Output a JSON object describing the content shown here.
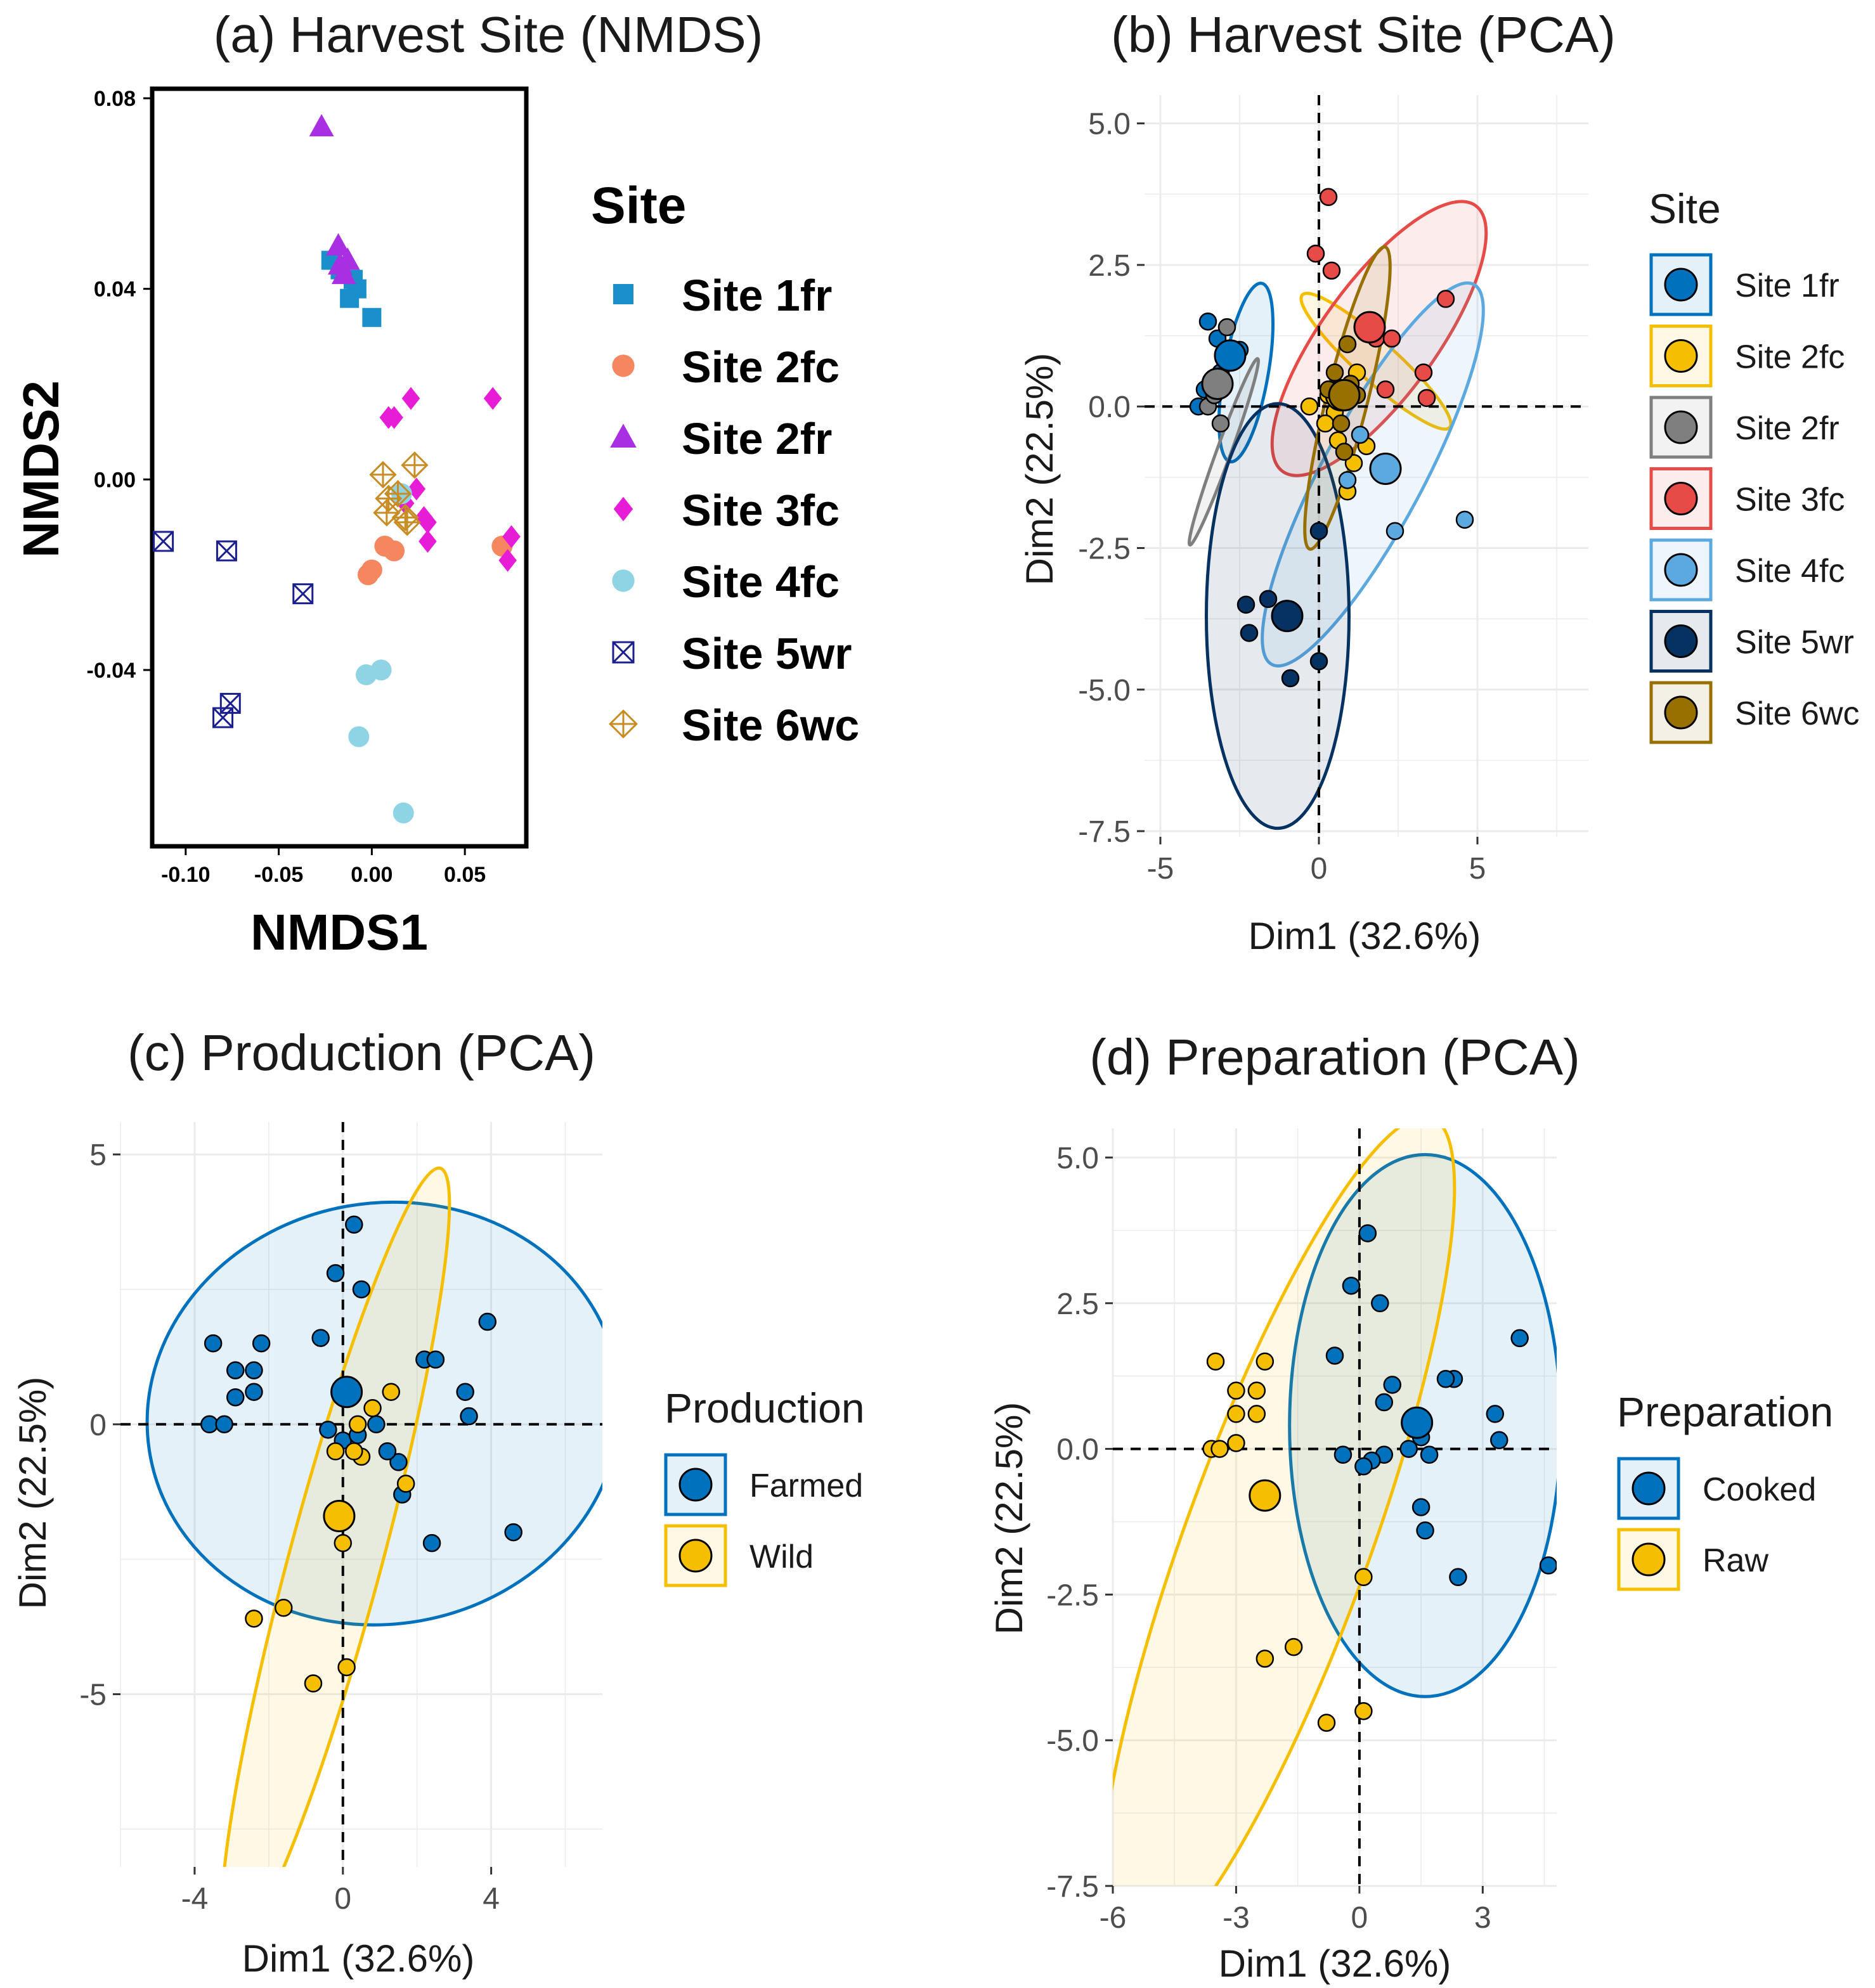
{
  "colors": {
    "site1fr": "#1a8fc9",
    "site2fc": "#f4875f",
    "site2fr": "#a82fe2",
    "site3fc": "#e61cd6",
    "site4fc": "#8fd4e4",
    "site5wr": "#1c1f8f",
    "site6wc": "#c78d24",
    "pca_1fr": "#0072bd",
    "pca_2fc": "#f5bf00",
    "pca_2fr": "#7f7f7f",
    "pca_3fc": "#e64b47",
    "pca_4fc": "#5ca9e0",
    "pca_5wr": "#063261",
    "pca_6wc": "#987000",
    "farmed": "#0072bd",
    "wild": "#f5bf00"
  },
  "chart_data": [
    {
      "type": "scatter",
      "panel": "a",
      "title": "(a) Harvest Site (NMDS)",
      "xlabel": "NMDS1",
      "ylabel": "NMDS2",
      "xlim": [
        -0.118,
        0.083
      ],
      "ylim": [
        -0.077,
        0.082
      ],
      "xticks": [
        -0.1,
        -0.05,
        0.0,
        0.05
      ],
      "xtick_labels": [
        "-0.10",
        "-0.05",
        "0.00",
        "0.05"
      ],
      "yticks": [
        -0.04,
        0.0,
        0.04,
        0.08
      ],
      "ytick_labels": [
        "-0.04",
        "0.00",
        "0.04",
        "0.08"
      ],
      "legend_title": "Site",
      "series": [
        {
          "name": "Site 1fr",
          "marker": "square",
          "color": "site1fr",
          "points": [
            [
              -0.022,
              0.046
            ],
            [
              -0.017,
              0.044
            ],
            [
              -0.01,
              0.042
            ],
            [
              -0.008,
              0.04
            ],
            [
              -0.012,
              0.038
            ],
            [
              0.0,
              0.034
            ]
          ]
        },
        {
          "name": "Site 2fc",
          "marker": "circle",
          "color": "site2fc",
          "points": [
            [
              -0.002,
              -0.02
            ],
            [
              0.0,
              -0.019
            ],
            [
              0.007,
              -0.014
            ],
            [
              0.012,
              -0.015
            ],
            [
              0.07,
              -0.014
            ]
          ]
        },
        {
          "name": "Site 2fr",
          "marker": "triangle",
          "color": "site2fr",
          "points": [
            [
              -0.027,
              0.074
            ],
            [
              -0.018,
              0.049
            ],
            [
              -0.017,
              0.045
            ],
            [
              -0.015,
              0.043
            ],
            [
              -0.013,
              0.046
            ]
          ]
        },
        {
          "name": "Site 3fc",
          "marker": "diamond",
          "color": "site3fc",
          "points": [
            [
              0.009,
              0.013
            ],
            [
              0.012,
              0.013
            ],
            [
              0.021,
              0.017
            ],
            [
              0.065,
              0.017
            ],
            [
              0.018,
              -0.005
            ],
            [
              0.024,
              -0.002
            ],
            [
              0.028,
              -0.008
            ],
            [
              0.03,
              -0.009
            ],
            [
              0.03,
              -0.013
            ],
            [
              0.075,
              -0.012
            ],
            [
              0.073,
              -0.017
            ]
          ]
        },
        {
          "name": "Site 4fc",
          "marker": "circle",
          "color": "site4fc",
          "points": [
            [
              0.016,
              -0.003
            ],
            [
              -0.003,
              -0.041
            ],
            [
              0.005,
              -0.04
            ],
            [
              -0.007,
              -0.054
            ],
            [
              0.017,
              -0.07
            ]
          ]
        },
        {
          "name": "Site 5wr",
          "marker": "boxx",
          "color": "site5wr",
          "points": [
            [
              -0.112,
              -0.013
            ],
            [
              -0.078,
              -0.015
            ],
            [
              -0.037,
              -0.024
            ],
            [
              -0.076,
              -0.047
            ],
            [
              -0.08,
              -0.05
            ]
          ]
        },
        {
          "name": "Site 6wc",
          "marker": "diamondplus",
          "color": "site6wc",
          "points": [
            [
              0.006,
              0.001
            ],
            [
              0.023,
              0.003
            ],
            [
              0.009,
              -0.004
            ],
            [
              0.014,
              -0.003
            ],
            [
              0.008,
              -0.007
            ],
            [
              0.018,
              -0.008
            ],
            [
              0.019,
              -0.009
            ]
          ]
        }
      ]
    },
    {
      "type": "scatter",
      "panel": "b",
      "title": "(b) Harvest Site (PCA)",
      "xlabel": "Dim1 (32.6%)",
      "ylabel": "Dim2 (22.5%)",
      "xlim": [
        -5.5,
        8.5
      ],
      "ylim": [
        -7.6,
        5.5
      ],
      "xticks": [
        -5,
        0,
        5
      ],
      "xtick_labels": [
        "-5",
        "0",
        "5"
      ],
      "yticks": [
        5.0,
        2.5,
        0.0,
        -2.5,
        -5.0,
        -7.5
      ],
      "ytick_labels": [
        "5.0",
        "2.5",
        "0.0",
        "-2.5",
        "-5.0",
        "-7.5"
      ],
      "legend_title": "Site",
      "series": [
        {
          "name": "Site 1fr",
          "color": "pca_1fr",
          "centroid": [
            -2.8,
            0.9
          ],
          "ellipse": [
            -2.3,
            0.6,
            1.4,
            3.2,
            10
          ],
          "points": [
            [
              -3.5,
              1.5
            ],
            [
              -3.2,
              1.2
            ],
            [
              -3.6,
              0.3
            ],
            [
              -3.8,
              0.0
            ],
            [
              -2.5,
              1.0
            ],
            [
              -3.1,
              0.6
            ]
          ]
        },
        {
          "name": "Site 2fc",
          "color": "pca_2fc",
          "centroid": [
            0.7,
            0.2
          ],
          "ellipse": [
            1.8,
            0.8,
            1.25,
            3.5,
            -48
          ],
          "points": [
            [
              -0.3,
              0.0
            ],
            [
              0.3,
              0.2
            ],
            [
              0.5,
              -0.1
            ],
            [
              0.8,
              0.3
            ],
            [
              1.2,
              0.6
            ],
            [
              0.6,
              -0.6
            ],
            [
              1.1,
              -1.0
            ],
            [
              0.2,
              -0.3
            ],
            [
              0.9,
              -1.5
            ],
            [
              1.5,
              -0.7
            ]
          ]
        },
        {
          "name": "Site 2fr",
          "color": "pca_2fr",
          "centroid": [
            -3.2,
            0.4
          ],
          "ellipse": [
            -3.0,
            -0.8,
            0.45,
            3.5,
            20
          ],
          "points": [
            [
              -3.5,
              0.0
            ],
            [
              -2.9,
              1.4
            ],
            [
              -3.1,
              -0.3
            ],
            [
              -3.3,
              0.2
            ]
          ]
        },
        {
          "name": "Site 3fc",
          "color": "pca_3fc",
          "centroid": [
            1.6,
            1.4
          ],
          "ellipse": [
            1.9,
            1.2,
            3.6,
            5.8,
            36
          ],
          "points": [
            [
              0.3,
              3.7
            ],
            [
              -0.1,
              2.7
            ],
            [
              0.4,
              2.4
            ],
            [
              1.8,
              1.2
            ],
            [
              2.3,
              1.2
            ],
            [
              3.3,
              0.6
            ],
            [
              4.0,
              1.9
            ],
            [
              3.4,
              0.15
            ],
            [
              2.1,
              0.3
            ]
          ]
        },
        {
          "name": "Site 4fc",
          "color": "pca_4fc",
          "centroid": [
            2.1,
            -1.1
          ],
          "ellipse": [
            1.7,
            -1.2,
            3.2,
            7.6,
            28
          ],
          "points": [
            [
              2.4,
              -2.2
            ],
            [
              4.6,
              -2.0
            ],
            [
              0.9,
              -1.3
            ],
            [
              1.3,
              -0.5
            ]
          ]
        },
        {
          "name": "Site 5wr",
          "color": "pca_5wr",
          "centroid": [
            -1.0,
            -3.7
          ],
          "ellipse": [
            -1.3,
            -3.7,
            4.5,
            7.5,
            0
          ],
          "points": [
            [
              -2.3,
              -3.5
            ],
            [
              -1.6,
              -3.4
            ],
            [
              -2.2,
              -4.0
            ],
            [
              0.0,
              -4.5
            ],
            [
              -0.9,
              -4.8
            ],
            [
              0.0,
              -2.2
            ]
          ]
        },
        {
          "name": "Site 6wc",
          "color": "pca_6wc",
          "centroid": [
            0.8,
            0.2
          ],
          "ellipse": [
            0.9,
            0.15,
            1.3,
            5.5,
            14
          ],
          "points": [
            [
              0.9,
              1.1
            ],
            [
              0.5,
              0.6
            ],
            [
              1.2,
              0.2
            ],
            [
              0.7,
              -0.3
            ],
            [
              1.0,
              0.4
            ],
            [
              0.3,
              0.3
            ],
            [
              0.8,
              -0.8
            ]
          ]
        }
      ]
    },
    {
      "type": "scatter",
      "panel": "c",
      "title": "(c) Production (PCA)",
      "xlabel": "Dim1 (32.6%)",
      "ylabel": "Dim2 (22.5%)",
      "xlim": [
        -6.0,
        7.0
      ],
      "ylim": [
        -8.2,
        5.6
      ],
      "xticks": [
        -4,
        0,
        4
      ],
      "xtick_labels": [
        "-4",
        "0",
        "4"
      ],
      "yticks": [
        5,
        0,
        -5
      ],
      "ytick_labels": [
        "5",
        "0",
        "-5"
      ],
      "legend_title": "Production",
      "series": [
        {
          "name": "Farmed",
          "color": "farmed",
          "centroid": [
            0.1,
            0.6
          ],
          "ellipse": [
            1.1,
            0.2,
            12.8,
            7.8,
            -10
          ],
          "points": [
            [
              -3.5,
              1.5
            ],
            [
              -2.9,
              1.0
            ],
            [
              -2.4,
              1.0
            ],
            [
              -2.2,
              1.5
            ],
            [
              -2.9,
              0.5
            ],
            [
              -2.4,
              0.6
            ],
            [
              -3.6,
              0.0
            ],
            [
              -3.2,
              0.0
            ],
            [
              -0.6,
              1.6
            ],
            [
              -0.2,
              2.8
            ],
            [
              0.3,
              3.7
            ],
            [
              0.5,
              2.5
            ],
            [
              3.9,
              1.9
            ],
            [
              2.2,
              1.2
            ],
            [
              2.5,
              1.2
            ],
            [
              3.3,
              0.6
            ],
            [
              3.4,
              0.15
            ],
            [
              4.6,
              -2.0
            ],
            [
              2.4,
              -2.2
            ],
            [
              1.5,
              -0.7
            ],
            [
              1.6,
              -1.3
            ],
            [
              1.2,
              -0.5
            ],
            [
              -0.4,
              -0.1
            ],
            [
              0.0,
              -0.3
            ],
            [
              0.4,
              -0.2
            ],
            [
              0.9,
              0.0
            ]
          ]
        },
        {
          "name": "Wild",
          "color": "wild",
          "centroid": [
            -0.1,
            -1.7
          ],
          "ellipse": [
            -0.2,
            -2.5,
            2.5,
            15.0,
            15
          ],
          "points": [
            [
              -2.4,
              -3.6
            ],
            [
              -1.6,
              -3.4
            ],
            [
              -0.8,
              -4.8
            ],
            [
              0.1,
              -4.5
            ],
            [
              0.0,
              -2.2
            ],
            [
              0.4,
              0.0
            ],
            [
              0.5,
              -0.6
            ],
            [
              1.3,
              0.6
            ],
            [
              1.7,
              -1.1
            ],
            [
              0.8,
              0.3
            ],
            [
              0.3,
              -0.5
            ],
            [
              -0.2,
              -0.5
            ]
          ]
        }
      ]
    },
    {
      "type": "scatter",
      "panel": "d",
      "title": "(d) Preparation (PCA)",
      "xlabel": "Dim1 (32.6%)",
      "ylabel": "Dim2 (22.5%)",
      "xlim": [
        -6.0,
        4.8
      ],
      "ylim": [
        -7.5,
        5.5
      ],
      "xticks": [
        -6,
        -3,
        0,
        3
      ],
      "xtick_labels": [
        "-6",
        "-3",
        "0",
        "3"
      ],
      "yticks": [
        5.0,
        2.5,
        0.0,
        -2.5,
        -5.0,
        -7.5
      ],
      "ytick_labels": [
        "5.0",
        "2.5",
        "0.0",
        "-2.5",
        "-5.0",
        "-7.5"
      ],
      "legend_title": "Preparation",
      "series": [
        {
          "name": "Cooked",
          "color": "farmed",
          "centroid": [
            1.4,
            0.45
          ],
          "ellipse": [
            1.6,
            0.4,
            6.6,
            9.3,
            0
          ],
          "points": [
            [
              0.2,
              3.7
            ],
            [
              -0.2,
              2.8
            ],
            [
              0.5,
              2.5
            ],
            [
              -0.6,
              1.6
            ],
            [
              0.8,
              1.1
            ],
            [
              2.3,
              1.2
            ],
            [
              2.1,
              1.2
            ],
            [
              3.9,
              1.9
            ],
            [
              0.6,
              0.8
            ],
            [
              3.3,
              0.6
            ],
            [
              3.4,
              0.15
            ],
            [
              1.5,
              0.2
            ],
            [
              1.2,
              0.0
            ],
            [
              0.6,
              -0.1
            ],
            [
              0.3,
              -0.2
            ],
            [
              -0.4,
              -0.1
            ],
            [
              0.1,
              -0.3
            ],
            [
              4.6,
              -2.0
            ],
            [
              2.4,
              -2.2
            ],
            [
              1.5,
              -1.0
            ],
            [
              1.6,
              -1.4
            ],
            [
              1.7,
              -0.1
            ]
          ]
        },
        {
          "name": "Raw",
          "color": "wild",
          "centroid": [
            -2.3,
            -0.8
          ],
          "ellipse": [
            -2.0,
            -1.6,
            4.5,
            15.5,
            20
          ],
          "points": [
            [
              -3.5,
              1.5
            ],
            [
              -2.3,
              1.5
            ],
            [
              -3.0,
              1.0
            ],
            [
              -2.5,
              1.0
            ],
            [
              -3.0,
              0.6
            ],
            [
              -2.5,
              0.6
            ],
            [
              -3.6,
              0.0
            ],
            [
              -3.4,
              0.0
            ],
            [
              -3.0,
              0.1
            ],
            [
              -2.3,
              -3.6
            ],
            [
              -1.6,
              -3.4
            ],
            [
              -0.8,
              -4.7
            ],
            [
              0.1,
              -4.5
            ],
            [
              0.1,
              -2.2
            ]
          ]
        }
      ]
    }
  ]
}
